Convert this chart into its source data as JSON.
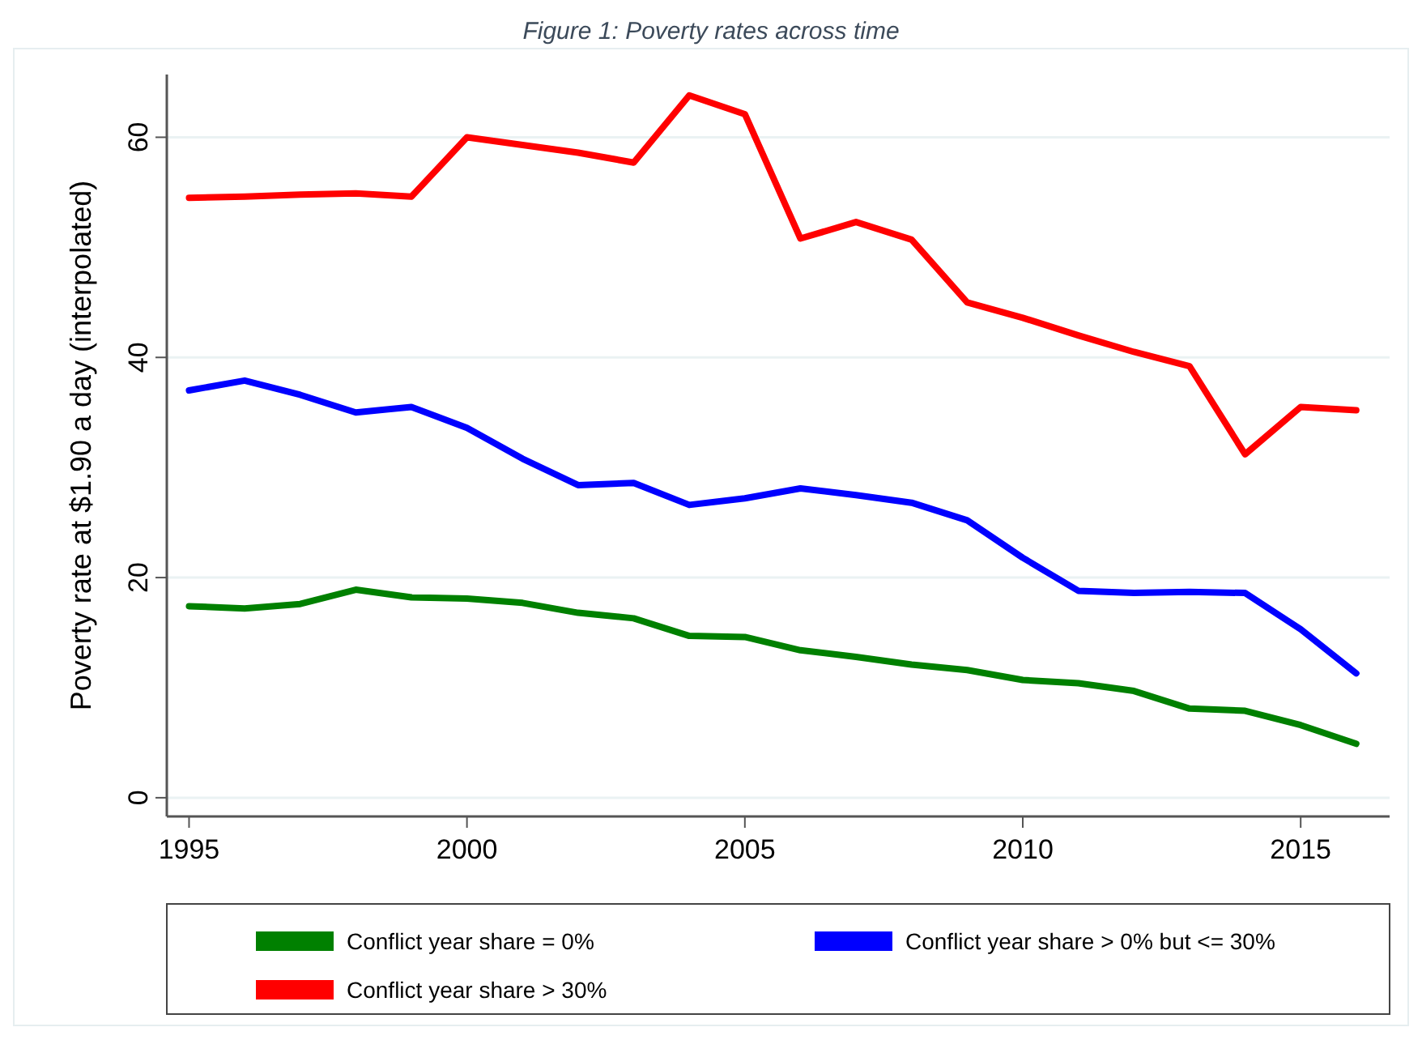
{
  "chart_data": {
    "type": "line",
    "title": "Figure 1: Poverty rates across time",
    "ylabel": "Poverty rate at $1.90 a day (interpolated)",
    "x": [
      1995,
      1996,
      1997,
      1998,
      1999,
      2000,
      2001,
      2002,
      2003,
      2004,
      2005,
      2006,
      2007,
      2008,
      2009,
      2010,
      2011,
      2012,
      2013,
      2014,
      2015,
      2016
    ],
    "series": [
      {
        "name": "Conflict year share = 0%",
        "color": "#008000",
        "values": [
          17.4,
          17.2,
          17.6,
          18.9,
          18.2,
          18.1,
          17.7,
          16.8,
          16.3,
          14.7,
          14.6,
          13.4,
          12.8,
          12.1,
          11.6,
          10.7,
          10.4,
          9.7,
          8.1,
          7.9,
          6.6,
          4.9
        ]
      },
      {
        "name": "Conflict year share > 0% but <= 30%",
        "color": "#0000ff",
        "values": [
          37.0,
          37.9,
          36.6,
          35.0,
          35.5,
          33.6,
          30.8,
          28.4,
          28.6,
          26.6,
          27.2,
          28.1,
          27.5,
          26.8,
          25.2,
          21.8,
          18.8,
          18.6,
          18.7,
          18.6,
          15.3,
          11.3
        ]
      },
      {
        "name": "Conflict year share > 30%",
        "color": "#ff0000",
        "values": [
          54.5,
          54.6,
          54.8,
          54.9,
          54.6,
          60.0,
          59.3,
          58.6,
          57.7,
          63.8,
          62.1,
          50.8,
          52.3,
          50.7,
          45.0,
          43.6,
          42.0,
          40.5,
          39.2,
          31.2,
          35.5,
          35.2
        ]
      }
    ],
    "xlim": [
      1994.6,
      2016.6
    ],
    "xticks": [
      1995,
      2000,
      2005,
      2010,
      2015
    ],
    "ylim": [
      -1.7,
      65.7
    ],
    "yticks": [
      0,
      20,
      40,
      60
    ],
    "grid": "y",
    "legend": "bottom",
    "marker": "none",
    "line_style": "solid"
  }
}
